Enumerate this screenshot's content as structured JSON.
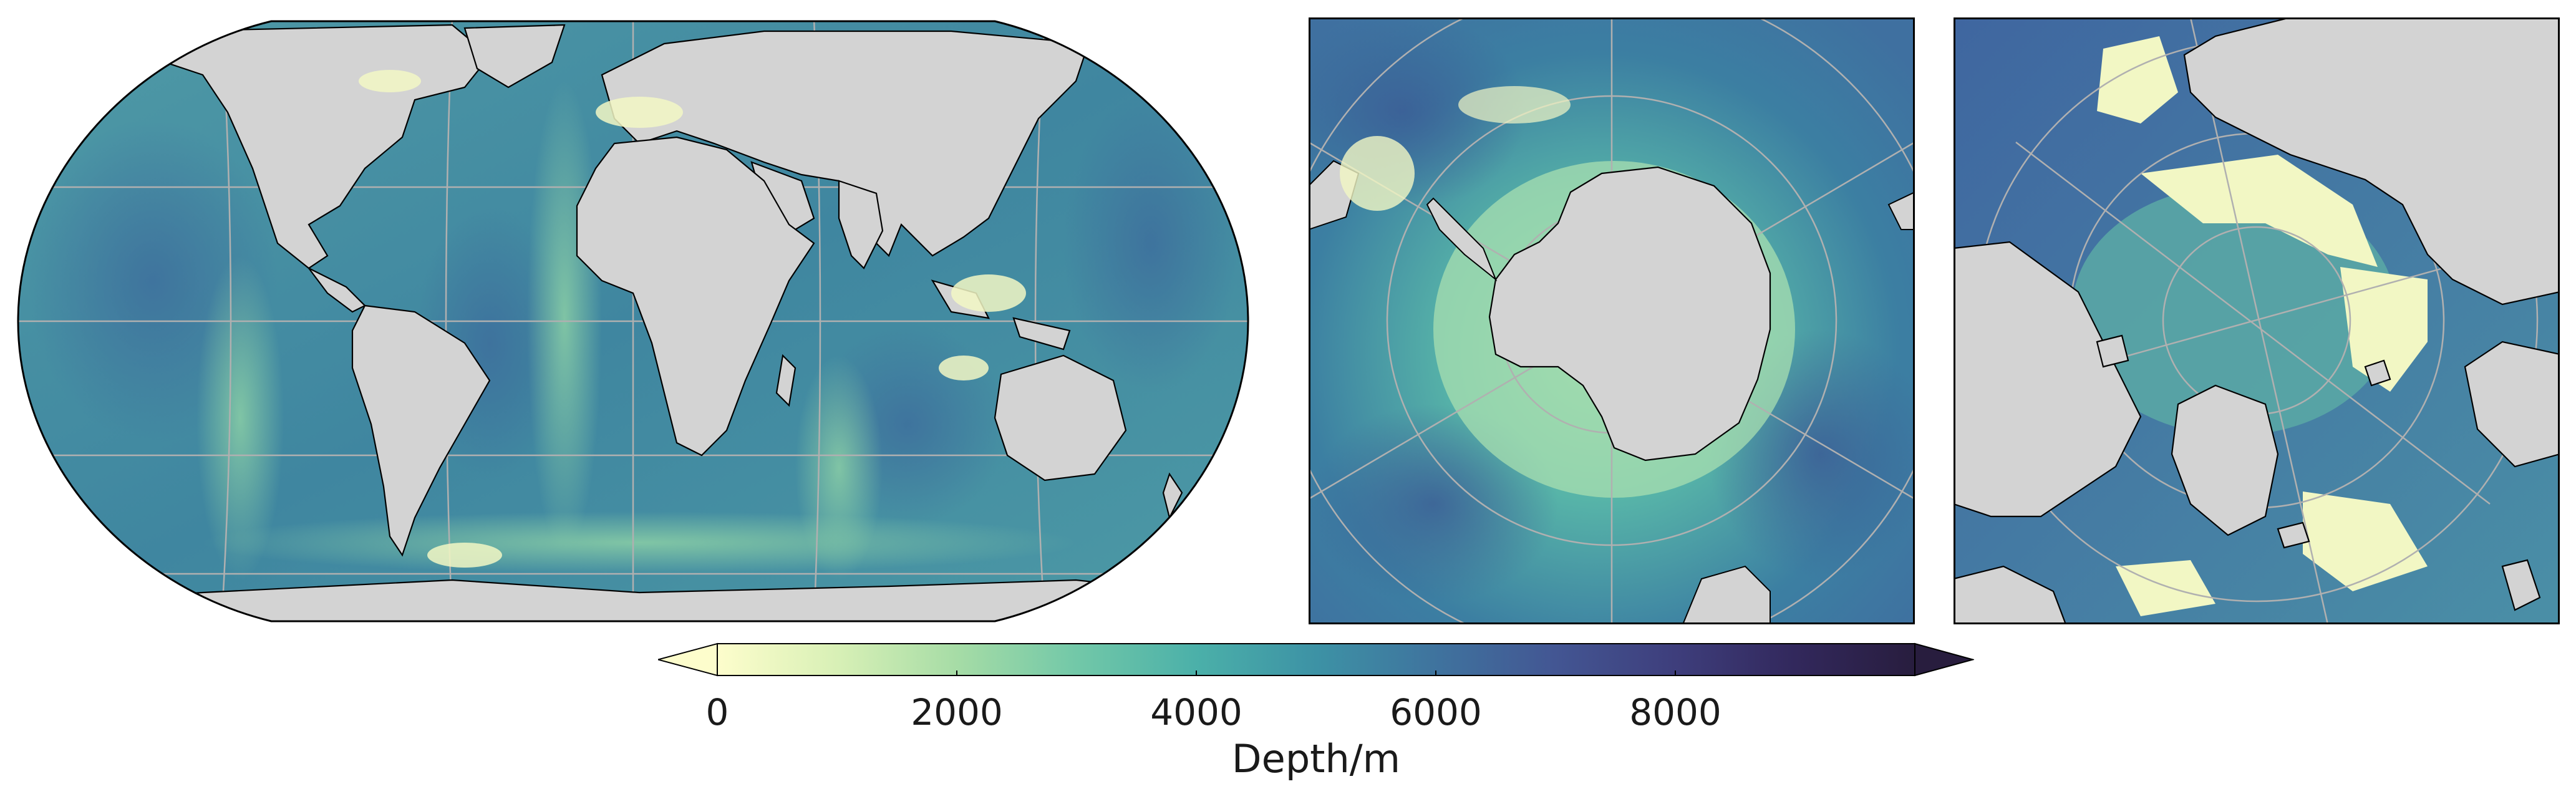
{
  "figure": {
    "panels": [
      {
        "id": "world",
        "projection": "Robinson (global)"
      },
      {
        "id": "south",
        "projection": "South Polar Stereographic"
      },
      {
        "id": "north",
        "projection": "North Polar Stereographic"
      }
    ],
    "land_color": "#d3d3d3",
    "coastline_color": "#000000",
    "graticule_color": "#b0b0b0"
  },
  "colorbar": {
    "label": "Depth/m",
    "ticks": [
      "0",
      "2000",
      "4000",
      "6000",
      "8000"
    ],
    "tick_values": [
      0,
      2000,
      4000,
      6000,
      8000
    ],
    "range": [
      0,
      10000
    ],
    "extend": "both",
    "colormap": "YlGnBu-like (deep)",
    "colors": [
      "#fdfdcc",
      "#c9ebb1",
      "#91d6a6",
      "#5fbea9",
      "#3fa3a9",
      "#3e84a3",
      "#42659a",
      "#434a87",
      "#39326a",
      "#281d3e"
    ]
  }
}
